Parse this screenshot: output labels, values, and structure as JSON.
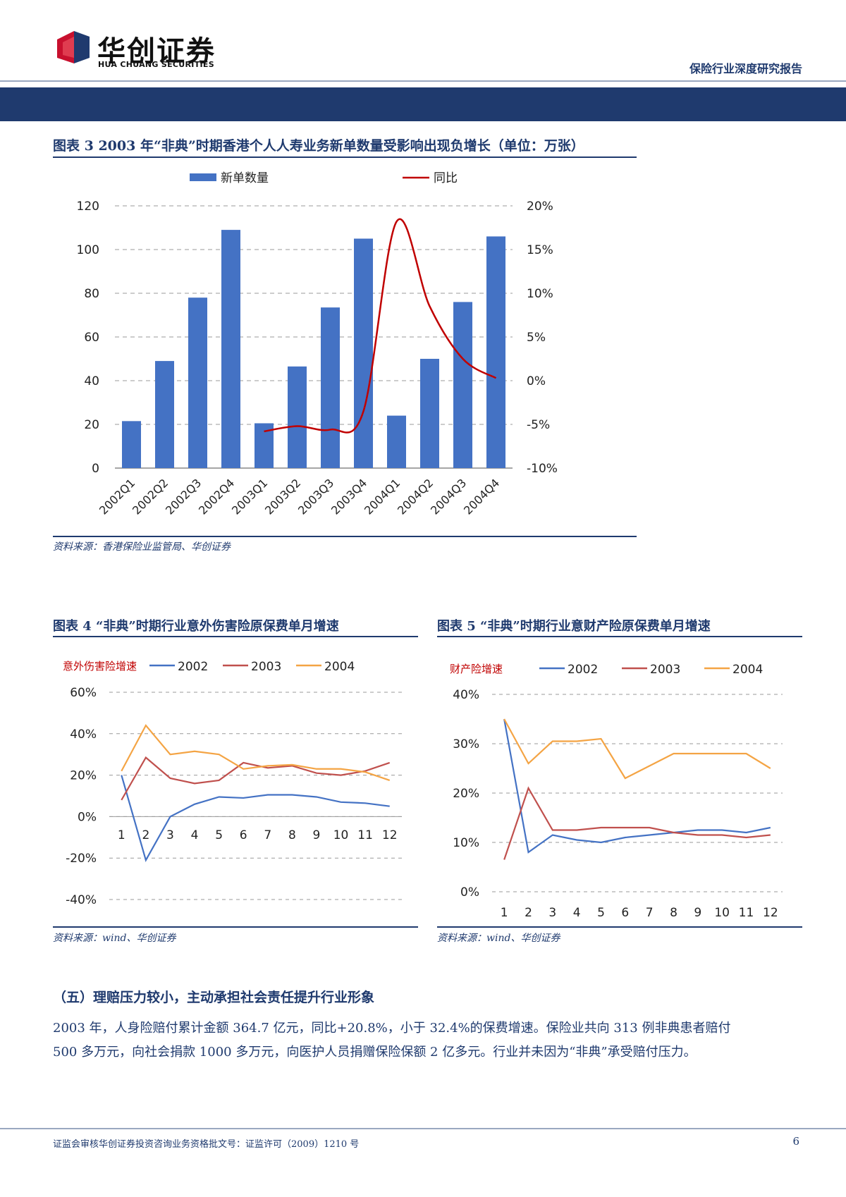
{
  "header": {
    "logo_cn": "华创证券",
    "logo_en": "HUA CHUANG SECURITIES",
    "report_type": "保险行业深度研究报告"
  },
  "figure3": {
    "title": "图表 3   2003 年“非典”时期香港个人人寿业务新单数量受影响出现负增长（单位：万张）",
    "source": "资料来源：香港保险业监管局、华创证券",
    "chart_data": {
      "type": "bar",
      "categories": [
        "2002Q1",
        "2002Q2",
        "2002Q3",
        "2002Q4",
        "2003Q1",
        "2003Q2",
        "2003Q3",
        "2003Q4",
        "2004Q1",
        "2004Q2",
        "2004Q3",
        "2004Q4"
      ],
      "series": [
        {
          "name": "新单数量",
          "type": "bar",
          "axis": "left",
          "color": "#4472C4",
          "values": [
            21.5,
            49,
            78,
            109,
            20.5,
            46.5,
            73.5,
            105,
            24,
            50,
            76,
            106
          ]
        },
        {
          "name": "同比",
          "type": "line",
          "axis": "right",
          "color": "#C00000",
          "values": [
            null,
            null,
            null,
            null,
            -5.8,
            -5.2,
            -5.6,
            -3.5,
            18.2,
            8.5,
            2.5,
            0.3
          ]
        }
      ],
      "ylim_left": [
        0,
        120
      ],
      "yticks_left": [
        "0",
        "20",
        "40",
        "60",
        "80",
        "100",
        "120"
      ],
      "ylim_right": [
        -10,
        20
      ],
      "yticks_right": [
        "-10%",
        "-5%",
        "0%",
        "5%",
        "10%",
        "15%",
        "20%"
      ],
      "legend_position": "top",
      "grid": true
    }
  },
  "figure4": {
    "title": "图表 4   “非典”时期行业意外伤害险原保费单月增速",
    "source": "资料来源：wind、华创证券",
    "chart_data": {
      "type": "line",
      "legend_label": "意外伤害险增速",
      "x": [
        "1",
        "2",
        "3",
        "4",
        "5",
        "6",
        "7",
        "8",
        "9",
        "10",
        "11",
        "12"
      ],
      "series": [
        {
          "name": "2002",
          "color": "#4472C4",
          "values": [
            20,
            -21,
            0,
            6,
            9.5,
            9,
            10.5,
            10.5,
            9.5,
            7,
            6.5,
            5
          ]
        },
        {
          "name": "2003",
          "color": "#C0504D",
          "values": [
            8,
            28.5,
            18.5,
            16,
            17.5,
            26,
            23.5,
            24.5,
            21,
            20,
            22,
            26
          ]
        },
        {
          "name": "2004",
          "color": "#F4A444",
          "values": [
            22,
            44,
            30,
            31.5,
            30,
            23,
            24.5,
            25,
            23,
            23,
            21.5,
            17.5
          ]
        }
      ],
      "ylim": [
        -40,
        60
      ],
      "yticks": [
        "-40%",
        "-20%",
        "0%",
        "20%",
        "40%",
        "60%"
      ],
      "grid": true
    }
  },
  "figure5": {
    "title": "图表 5   “非典”时期行业意财产险原保费单月增速",
    "source": "资料来源：wind、华创证券",
    "chart_data": {
      "type": "line",
      "legend_label": "财产险增速",
      "x": [
        "1",
        "2",
        "3",
        "4",
        "5",
        "6",
        "7",
        "8",
        "9",
        "10",
        "11",
        "12"
      ],
      "series": [
        {
          "name": "2002",
          "color": "#4472C4",
          "values": [
            35,
            8,
            11.5,
            10.5,
            10,
            11,
            11.5,
            12,
            12.5,
            12.5,
            12,
            13
          ]
        },
        {
          "name": "2003",
          "color": "#C0504D",
          "values": [
            6.5,
            21,
            12.5,
            12.5,
            13,
            13,
            13,
            12,
            11.5,
            11.5,
            11,
            11.5
          ]
        },
        {
          "name": "2004",
          "color": "#F4A444",
          "values": [
            35,
            26,
            30.5,
            30.5,
            31,
            23,
            25.5,
            28,
            28,
            28,
            28,
            25
          ]
        }
      ],
      "ylim": [
        0,
        40
      ],
      "yticks": [
        "0%",
        "10%",
        "20%",
        "30%",
        "40%"
      ],
      "grid": true
    }
  },
  "section": {
    "title": "（五）理赔压力较小，主动承担社会责任提升行业形象",
    "para_line1": "2003 年，人身险赔付累计金额 364.7 亿元，同比+20.8%，小于 32.4%的保费增速。保险业共向 313 例非典患者赔付",
    "para_line2": "500 多万元，向社会捐款 1000 多万元，向医护人员捐赠保险保额 2 亿多元。行业并未因为“非典”承受赔付压力。"
  },
  "footer": {
    "license": "证监会审核华创证券投资咨询业务资格批文号：证监许可（2009）1210 号",
    "page_number": "6"
  }
}
